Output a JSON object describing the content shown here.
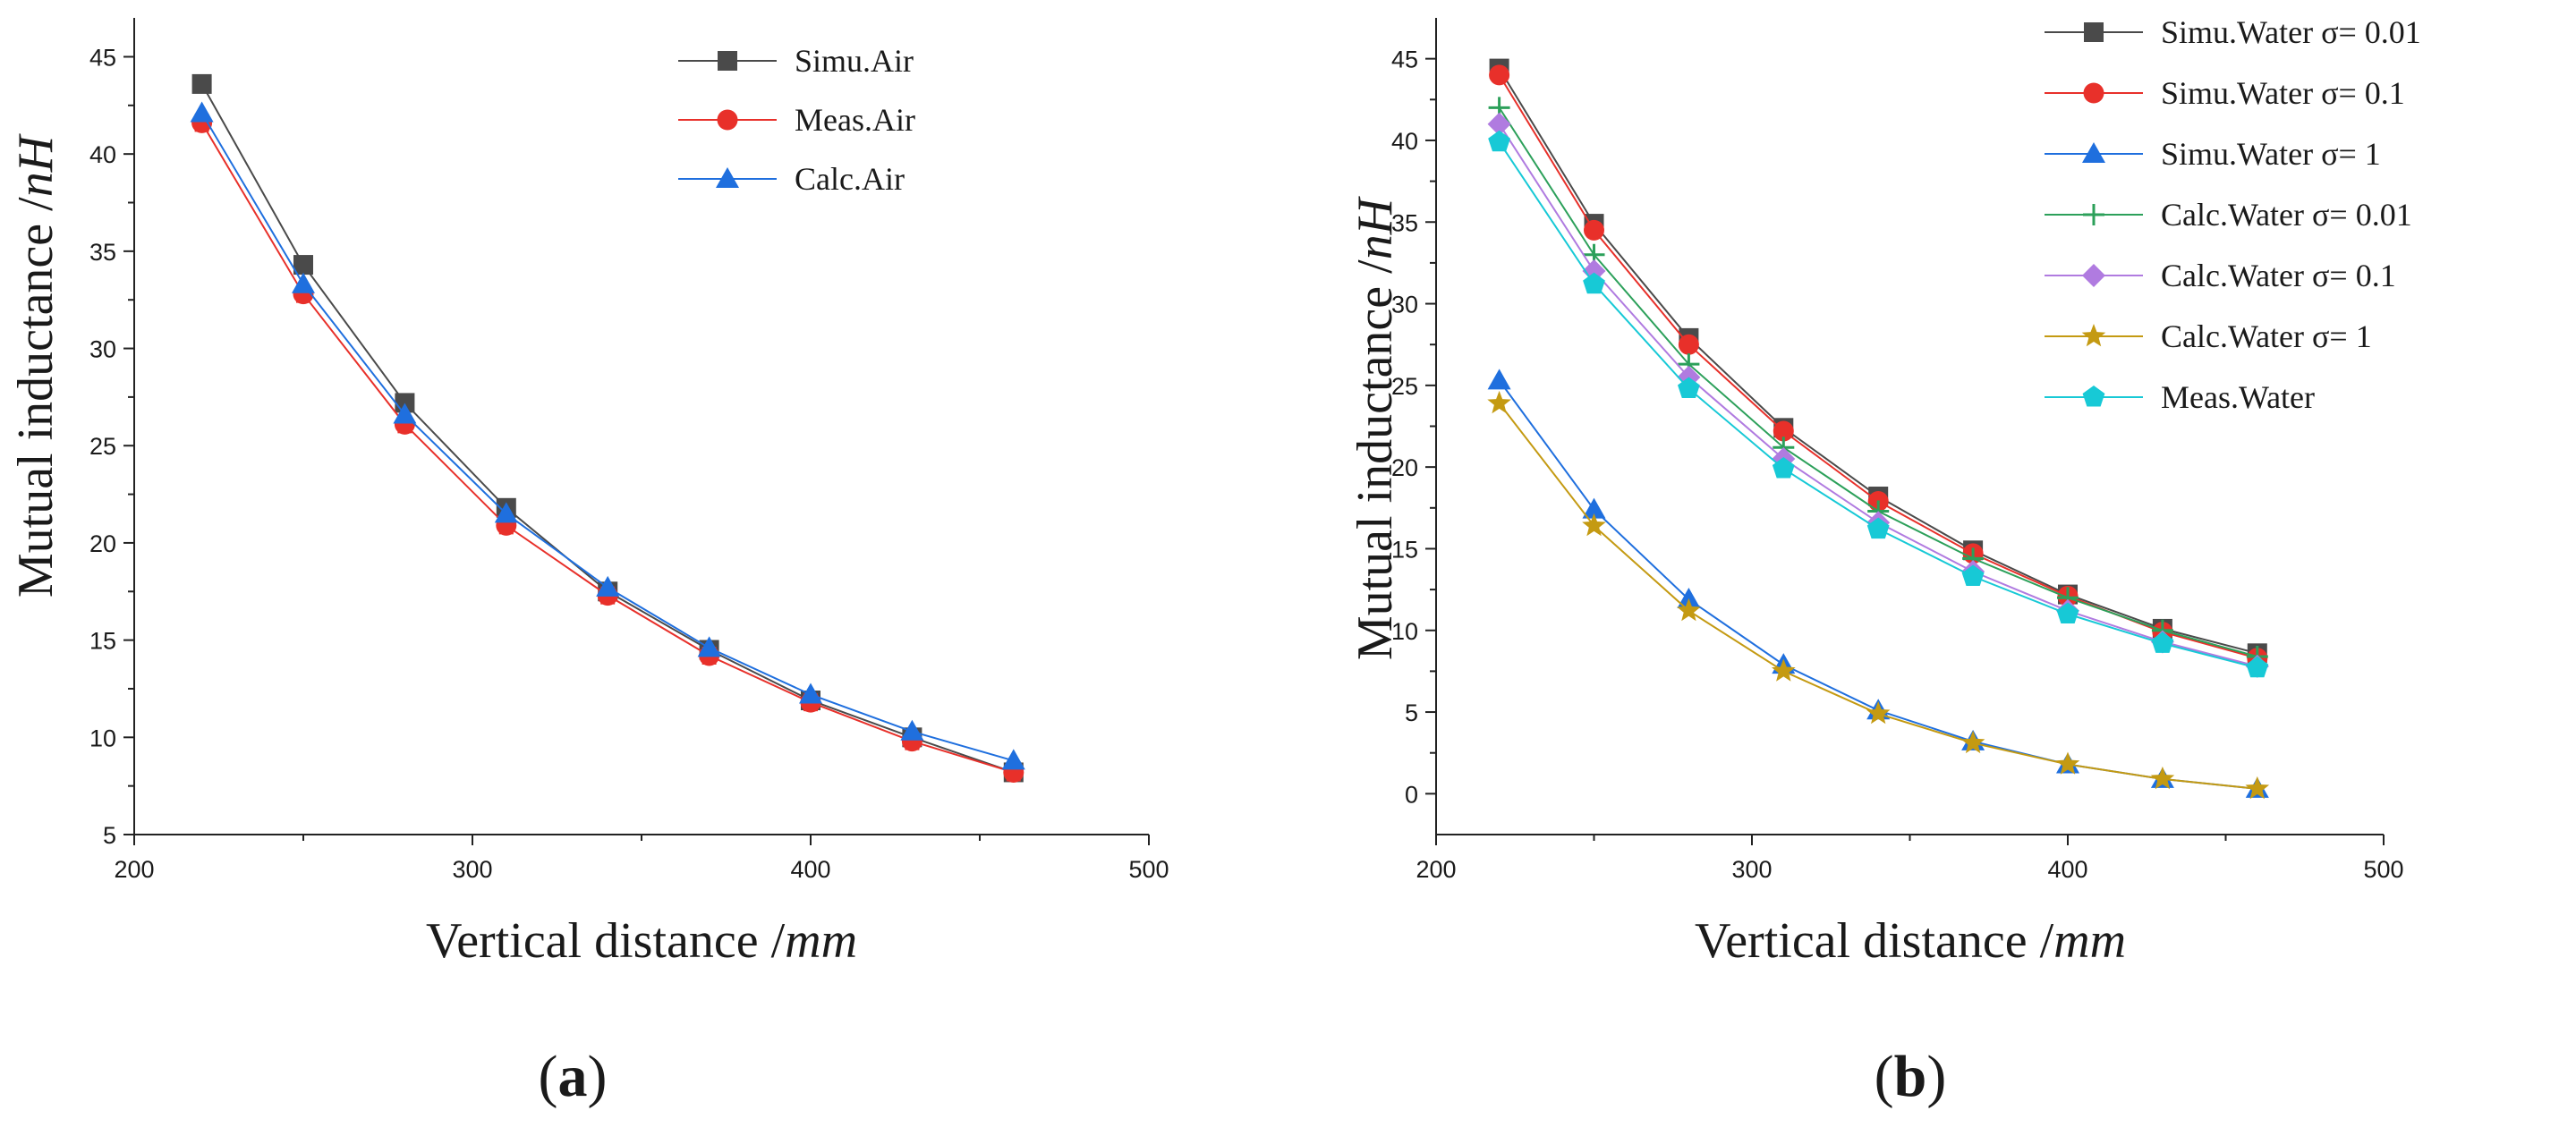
{
  "chart_data": [
    {
      "type": "line",
      "panel_label": "a",
      "xlabel": "Vertical distance",
      "xlabel_unit": "mm",
      "ylabel": "Mutual inductance",
      "ylabel_unit": "nH",
      "xlim": [
        200,
        500
      ],
      "ylim": [
        5,
        47
      ],
      "xticks": [
        200,
        300,
        400,
        500
      ],
      "yticks": [
        5,
        10,
        15,
        20,
        25,
        30,
        35,
        40,
        45
      ],
      "x": [
        220,
        250,
        280,
        310,
        340,
        370,
        400,
        430,
        460
      ],
      "legend_position": "top-right",
      "series": [
        {
          "name": "Simu.Air",
          "color": "#4a4a4a",
          "marker": "square",
          "error_bars": false,
          "values": [
            43.6,
            34.3,
            27.2,
            21.8,
            17.5,
            14.5,
            11.9,
            10.0,
            8.2
          ]
        },
        {
          "name": "Meas.Air",
          "color": "#e8302a",
          "marker": "circle",
          "error_bars": true,
          "values": [
            41.6,
            32.8,
            26.1,
            20.9,
            17.3,
            14.2,
            11.8,
            9.8,
            8.2
          ]
        },
        {
          "name": "Calc.Air",
          "color": "#1f6fde",
          "marker": "triangle",
          "error_bars": false,
          "values": [
            42.1,
            33.3,
            26.6,
            21.5,
            17.7,
            14.6,
            12.2,
            10.3,
            8.8
          ]
        }
      ]
    },
    {
      "type": "line",
      "panel_label": "b",
      "xlabel": "Vertical distance",
      "xlabel_unit": "mm",
      "ylabel": "Mutual inductance",
      "ylabel_unit": "nH",
      "xlim": [
        200,
        500
      ],
      "ylim": [
        -2.5,
        47.5
      ],
      "xticks": [
        200,
        300,
        400,
        500
      ],
      "yticks": [
        0,
        5,
        10,
        15,
        20,
        25,
        30,
        35,
        40,
        45
      ],
      "x": [
        220,
        250,
        280,
        310,
        340,
        370,
        400,
        430,
        460
      ],
      "legend_position": "top-right",
      "series": [
        {
          "name": "Simu.Water σ= 0.01",
          "color": "#4a4a4a",
          "marker": "square",
          "values": [
            44.4,
            34.9,
            27.9,
            22.4,
            18.2,
            14.9,
            12.2,
            10.1,
            8.6
          ]
        },
        {
          "name": "Simu.Water σ= 0.1",
          "color": "#e8302a",
          "marker": "circle",
          "values": [
            44.0,
            34.5,
            27.5,
            22.2,
            17.9,
            14.7,
            12.1,
            9.9,
            8.3
          ]
        },
        {
          "name": "Simu.Water σ= 1",
          "color": "#1f6fde",
          "marker": "triangle",
          "values": [
            25.3,
            17.4,
            11.9,
            7.9,
            5.1,
            3.2,
            1.8,
            0.9,
            0.3
          ]
        },
        {
          "name": "Calc.Water σ= 0.01",
          "color": "#2ca05a",
          "marker": "plus",
          "values": [
            42.0,
            33.0,
            26.3,
            21.2,
            17.3,
            14.4,
            12.0,
            10.0,
            8.4
          ]
        },
        {
          "name": "Calc.Water σ= 0.1",
          "color": "#b07be0",
          "marker": "diamond",
          "values": [
            41.0,
            32.0,
            25.5,
            20.5,
            16.6,
            13.6,
            11.2,
            9.3,
            7.8
          ]
        },
        {
          "name": "Calc.Water σ= 1",
          "color": "#c49a12",
          "marker": "star",
          "values": [
            23.9,
            16.4,
            11.2,
            7.5,
            4.9,
            3.1,
            1.8,
            0.9,
            0.3
          ]
        },
        {
          "name": "Meas.Water",
          "color": "#17c9d6",
          "marker": "pentagon",
          "values": [
            39.9,
            31.2,
            24.8,
            19.9,
            16.2,
            13.3,
            11.0,
            9.2,
            7.7
          ]
        }
      ]
    }
  ]
}
